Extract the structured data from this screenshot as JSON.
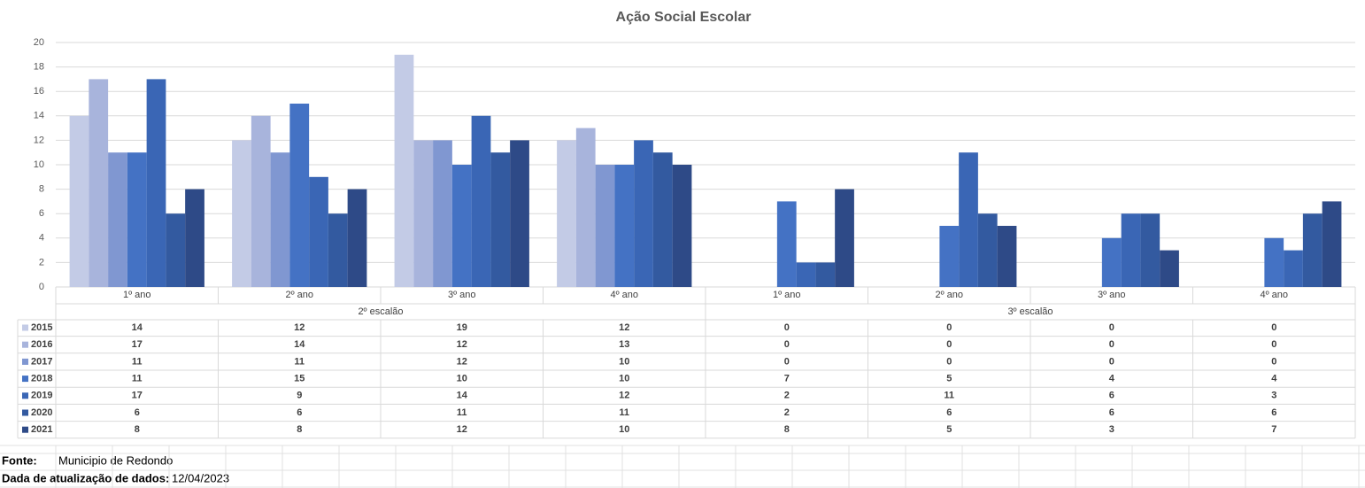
{
  "chart_data": {
    "type": "bar",
    "title": "Ação Social Escolar",
    "groups": [
      {
        "name": "2º escalão",
        "categories": [
          "1º ano",
          "2º ano",
          "3º ano",
          "4º ano"
        ]
      },
      {
        "name": "3º escalão",
        "categories": [
          "1º ano",
          "2º ano",
          "3º ano",
          "4º ano"
        ]
      }
    ],
    "series": [
      {
        "name": "2015",
        "color": "#c3cbe6",
        "values": [
          14,
          12,
          19,
          12,
          0,
          0,
          0,
          0
        ]
      },
      {
        "name": "2016",
        "color": "#a8b4dc",
        "values": [
          17,
          14,
          12,
          13,
          0,
          0,
          0,
          0
        ]
      },
      {
        "name": "2017",
        "color": "#8097d1",
        "values": [
          11,
          11,
          12,
          10,
          0,
          0,
          0,
          0
        ]
      },
      {
        "name": "2018",
        "color": "#4472c4",
        "values": [
          11,
          15,
          10,
          10,
          7,
          5,
          4,
          4
        ]
      },
      {
        "name": "2019",
        "color": "#3a66b5",
        "values": [
          17,
          9,
          14,
          12,
          2,
          11,
          6,
          3
        ]
      },
      {
        "name": "2020",
        "color": "#335aa0",
        "values": [
          6,
          6,
          11,
          11,
          2,
          6,
          6,
          6
        ]
      },
      {
        "name": "2021",
        "color": "#2e4a87",
        "values": [
          8,
          8,
          12,
          10,
          8,
          5,
          3,
          7
        ]
      }
    ],
    "ylim": [
      0,
      20
    ],
    "yticks": [
      0,
      2,
      4,
      6,
      8,
      10,
      12,
      14,
      16,
      18,
      20
    ],
    "grid": true
  },
  "footer": {
    "source_label": "Fonte:",
    "source": "Municipio de Redondo",
    "date_label": "Dada de atualização de dados:",
    "date": "12/04/2023"
  }
}
